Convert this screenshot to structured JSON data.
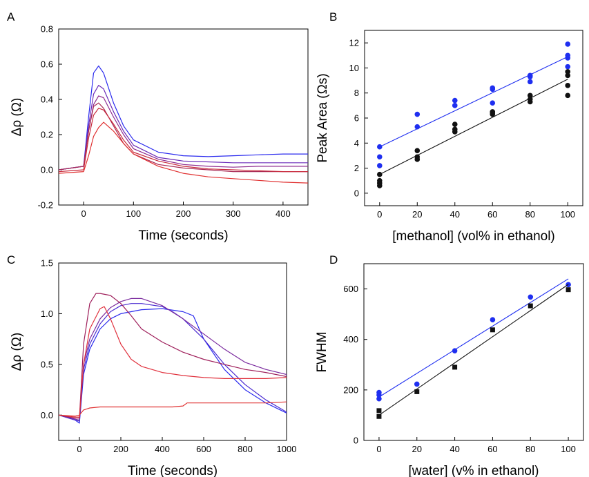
{
  "figure": {
    "panel_letters": [
      "A",
      "B",
      "C",
      "D"
    ]
  },
  "chart_data": [
    {
      "panel": "A",
      "type": "line",
      "xlabel": "Time (seconds)",
      "ylabel": "Δρ (Ω)",
      "xlim": [
        -50,
        450
      ],
      "ylim": [
        -0.2,
        0.8
      ],
      "xticks": [
        0,
        100,
        200,
        300,
        400
      ],
      "yticks": [
        -0.2,
        0.0,
        0.2,
        0.4,
        0.6,
        0.8
      ],
      "ytick_labels": [
        "-0.2",
        "0.0",
        "0.2",
        "0.4",
        "0.6",
        "0.8"
      ],
      "grid": false,
      "series": [
        {
          "color": "#2a2aee",
          "x": [
            -50,
            0,
            10,
            20,
            30,
            40,
            60,
            80,
            100,
            150,
            200,
            250,
            300,
            350,
            400,
            450
          ],
          "y": [
            0.0,
            0.02,
            0.3,
            0.55,
            0.59,
            0.55,
            0.38,
            0.25,
            0.17,
            0.1,
            0.08,
            0.075,
            0.08,
            0.085,
            0.09,
            0.09
          ]
        },
        {
          "color": "#6a2ab8",
          "x": [
            -50,
            0,
            10,
            20,
            30,
            40,
            60,
            80,
            100,
            150,
            200,
            250,
            300,
            350,
            400,
            450
          ],
          "y": [
            0.0,
            0.02,
            0.25,
            0.43,
            0.48,
            0.46,
            0.33,
            0.22,
            0.14,
            0.07,
            0.05,
            0.045,
            0.04,
            0.04,
            0.04,
            0.04
          ]
        },
        {
          "color": "#8e2a8e",
          "x": [
            -50,
            0,
            10,
            20,
            30,
            40,
            60,
            80,
            100,
            150,
            200,
            250,
            300,
            350,
            400,
            450
          ],
          "y": [
            0.0,
            0.02,
            0.22,
            0.37,
            0.42,
            0.41,
            0.3,
            0.2,
            0.12,
            0.06,
            0.03,
            0.02,
            0.015,
            0.02,
            0.02,
            0.02
          ]
        },
        {
          "color": "#a82a55",
          "x": [
            -50,
            0,
            10,
            20,
            30,
            40,
            60,
            80,
            100,
            150,
            200,
            250,
            300,
            350,
            400,
            450
          ],
          "y": [
            0.0,
            0.02,
            0.22,
            0.36,
            0.38,
            0.35,
            0.25,
            0.15,
            0.09,
            0.03,
            0.01,
            0.0,
            -0.01,
            -0.01,
            -0.01,
            -0.01
          ]
        },
        {
          "color": "#c8283a",
          "x": [
            -50,
            0,
            10,
            20,
            30,
            40,
            60,
            80,
            100,
            150,
            200,
            250,
            300,
            350,
            400,
            450
          ],
          "y": [
            -0.01,
            0.0,
            0.18,
            0.31,
            0.35,
            0.34,
            0.26,
            0.17,
            0.1,
            0.05,
            0.02,
            0.005,
            0.0,
            -0.005,
            -0.01,
            -0.01
          ]
        },
        {
          "color": "#e03030",
          "x": [
            -50,
            0,
            10,
            20,
            30,
            40,
            60,
            80,
            100,
            150,
            200,
            250,
            300,
            350,
            400,
            450
          ],
          "y": [
            -0.02,
            -0.01,
            0.08,
            0.19,
            0.24,
            0.27,
            0.22,
            0.15,
            0.09,
            0.02,
            -0.02,
            -0.04,
            -0.05,
            -0.06,
            -0.07,
            -0.075
          ]
        }
      ]
    },
    {
      "panel": "B",
      "type": "scatter",
      "xlabel": "[methanol] (vol% in ethanol)",
      "ylabel": "Peak Area (Ωs)",
      "xlim": [
        -8,
        108
      ],
      "ylim": [
        -1,
        13
      ],
      "xticks": [
        0,
        20,
        40,
        60,
        80,
        100
      ],
      "yticks": [
        0,
        2,
        4,
        6,
        8,
        10,
        12
      ],
      "grid": false,
      "series": [
        {
          "color": "#1f2ff0",
          "marker": "circle",
          "x": [
            0,
            0,
            0,
            20,
            20,
            40,
            40,
            60,
            60,
            60,
            80,
            80,
            80,
            100,
            100,
            100,
            100
          ],
          "y": [
            2.2,
            2.9,
            3.7,
            5.3,
            6.3,
            7.0,
            7.4,
            7.2,
            8.3,
            8.4,
            8.9,
            9.3,
            9.4,
            10.1,
            10.8,
            11.0,
            11.9
          ],
          "fit": [
            [
              0,
              3.7
            ],
            [
              100,
              10.9
            ]
          ]
        },
        {
          "color": "#111111",
          "marker": "circle",
          "x": [
            0,
            0,
            0,
            0,
            20,
            20,
            20,
            40,
            40,
            40,
            60,
            60,
            60,
            80,
            80,
            80,
            100,
            100,
            100,
            100
          ],
          "y": [
            0.6,
            0.8,
            1.0,
            1.5,
            2.7,
            2.9,
            3.4,
            4.9,
            5.1,
            5.5,
            6.3,
            6.4,
            6.5,
            7.3,
            7.5,
            7.8,
            7.8,
            8.6,
            9.4,
            9.7
          ],
          "fit": [
            [
              0,
              1.5
            ],
            [
              100,
              9.1
            ]
          ]
        }
      ]
    },
    {
      "panel": "C",
      "type": "line",
      "xlabel": "Time (seconds)",
      "ylabel": "Δρ (Ω)",
      "xlim": [
        -100,
        1000
      ],
      "ylim": [
        -0.25,
        1.5
      ],
      "xticks": [
        0,
        200,
        400,
        600,
        800,
        1000
      ],
      "yticks": [
        0.0,
        0.5,
        1.0,
        1.5
      ],
      "ytick_labels": [
        "0.0",
        "0.5",
        "1.0",
        "1.5"
      ],
      "grid": false,
      "series": [
        {
          "color": "#2a2aee",
          "x": [
            -100,
            -20,
            0,
            20,
            50,
            100,
            150,
            200,
            300,
            400,
            500,
            550,
            600,
            700,
            800,
            900,
            1000
          ],
          "y": [
            0.0,
            -0.05,
            -0.08,
            0.4,
            0.65,
            0.85,
            0.95,
            1.0,
            1.04,
            1.05,
            1.02,
            0.98,
            0.75,
            0.45,
            0.25,
            0.12,
            0.02
          ]
        },
        {
          "color": "#4a2ad0",
          "x": [
            -100,
            -20,
            0,
            20,
            50,
            100,
            150,
            200,
            250,
            300,
            400,
            450,
            500,
            600,
            700,
            800,
            900,
            1000
          ],
          "y": [
            0.0,
            -0.05,
            -0.06,
            0.45,
            0.7,
            0.9,
            1.02,
            1.08,
            1.1,
            1.1,
            1.07,
            1.02,
            0.95,
            0.75,
            0.5,
            0.3,
            0.15,
            0.03
          ]
        },
        {
          "color": "#7a2a9e",
          "x": [
            -100,
            -20,
            0,
            20,
            50,
            100,
            150,
            200,
            250,
            300,
            400,
            500,
            600,
            700,
            800,
            900,
            1000
          ],
          "y": [
            0.0,
            -0.04,
            -0.05,
            0.5,
            0.75,
            0.95,
            1.06,
            1.12,
            1.15,
            1.15,
            1.08,
            0.95,
            0.8,
            0.65,
            0.52,
            0.45,
            0.4
          ]
        },
        {
          "color": "#9e1e5a",
          "x": [
            -100,
            -20,
            0,
            20,
            50,
            80,
            100,
            150,
            200,
            250,
            300,
            400,
            500,
            600,
            700,
            800,
            900,
            1000
          ],
          "y": [
            0.0,
            -0.03,
            -0.03,
            0.7,
            1.1,
            1.2,
            1.2,
            1.18,
            1.1,
            0.98,
            0.85,
            0.72,
            0.62,
            0.55,
            0.5,
            0.45,
            0.42,
            0.38
          ]
        },
        {
          "color": "#e0303c",
          "x": [
            -100,
            -20,
            0,
            20,
            50,
            100,
            120,
            150,
            200,
            250,
            300,
            400,
            500,
            600,
            700,
            800,
            900,
            1000
          ],
          "y": [
            0.0,
            -0.02,
            -0.02,
            0.5,
            0.85,
            1.05,
            1.07,
            0.95,
            0.7,
            0.55,
            0.48,
            0.42,
            0.39,
            0.37,
            0.36,
            0.36,
            0.36,
            0.37
          ]
        },
        {
          "color": "#e03030",
          "x": [
            -100,
            -20,
            0,
            20,
            50,
            100,
            200,
            300,
            400,
            450,
            500,
            520,
            600,
            700,
            800,
            900,
            1000
          ],
          "y": [
            0.0,
            -0.01,
            0.0,
            0.05,
            0.07,
            0.08,
            0.08,
            0.08,
            0.08,
            0.08,
            0.09,
            0.12,
            0.12,
            0.12,
            0.12,
            0.12,
            0.13
          ]
        }
      ]
    },
    {
      "panel": "D",
      "type": "scatter",
      "xlabel": "[water] (v% in ethanol)",
      "ylabel": "FWHM",
      "xlim": [
        -8,
        108
      ],
      "ylim": [
        0,
        700
      ],
      "xticks": [
        0,
        20,
        40,
        60,
        80,
        100
      ],
      "yticks": [
        0,
        200,
        400,
        600
      ],
      "grid": false,
      "series": [
        {
          "color": "#1f2ff0",
          "marker": "circle",
          "x": [
            0,
            0,
            0,
            20,
            40,
            60,
            80,
            100
          ],
          "y": [
            165,
            180,
            190,
            223,
            355,
            478,
            568,
            617
          ],
          "fit": [
            [
              0,
              172
            ],
            [
              100,
              640
            ]
          ]
        },
        {
          "color": "#111111",
          "marker": "square",
          "x": [
            0,
            0,
            20,
            40,
            60,
            80,
            100
          ],
          "y": [
            95,
            118,
            193,
            290,
            438,
            533,
            597
          ],
          "fit": [
            [
              0,
              100
            ],
            [
              100,
              618
            ]
          ]
        }
      ]
    }
  ]
}
